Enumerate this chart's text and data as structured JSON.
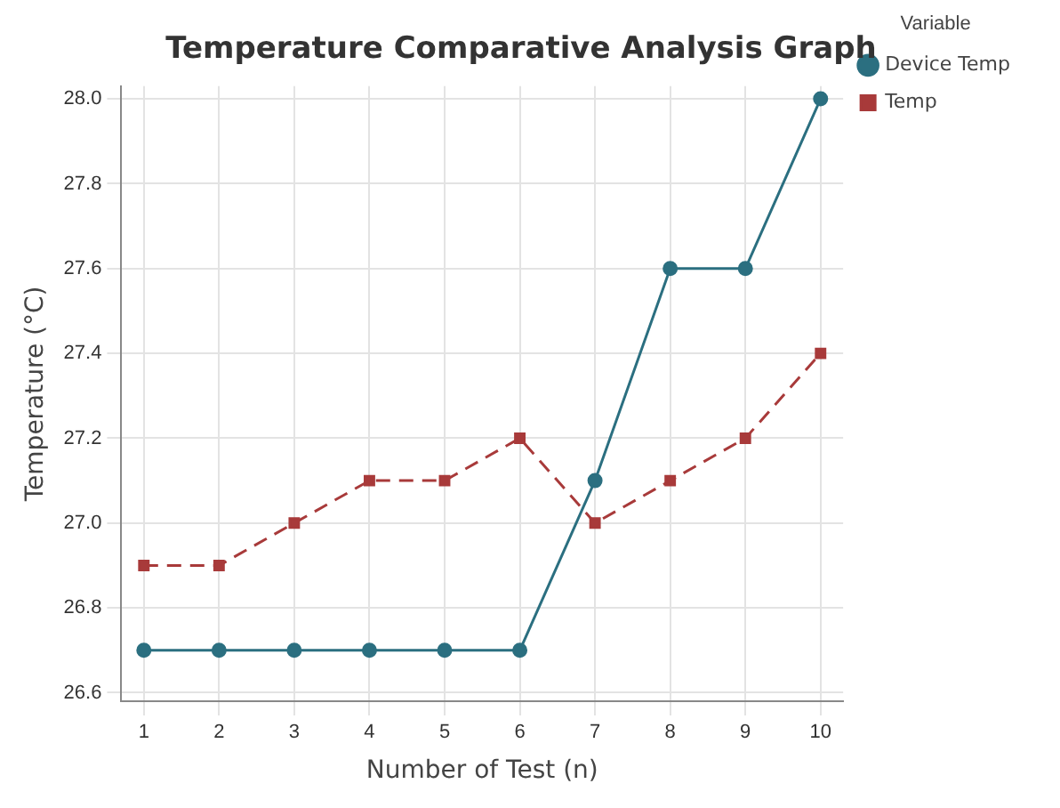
{
  "chart_data": {
    "type": "line",
    "title": "Temperature Comparative Analysis Graph",
    "xlabel": "Number of Test (n)",
    "ylabel": "Temperature (°C)",
    "legend_title": "Variable",
    "legend": "right",
    "grid": true,
    "x": [
      1,
      2,
      3,
      4,
      5,
      6,
      7,
      8,
      9,
      10
    ],
    "xlim": [
      0.7,
      10.3
    ],
    "xticks": [
      1,
      2,
      3,
      4,
      5,
      6,
      7,
      8,
      9,
      10
    ],
    "ylim": [
      26.58,
      28.03
    ],
    "yticks": [
      26.6,
      26.8,
      {
        "value": 27,
        "label": "27.0"
      },
      27.2,
      27.4,
      27.6,
      27.8,
      {
        "value": 28,
        "label": "28.0"
      }
    ],
    "series": [
      {
        "name": "Device Temp",
        "color": "#2b6f80",
        "marker": "circle",
        "line_style": "solid",
        "values": [
          26.7,
          26.7,
          26.7,
          26.7,
          26.7,
          26.7,
          27.1,
          27.6,
          27.6,
          28.0
        ]
      },
      {
        "name": "Temp",
        "color": "#a83a3a",
        "marker": "square",
        "line_style": "dashed",
        "values": [
          26.9,
          26.9,
          27.0,
          27.1,
          27.1,
          27.2,
          27.0,
          27.1,
          27.2,
          27.4
        ]
      }
    ]
  }
}
